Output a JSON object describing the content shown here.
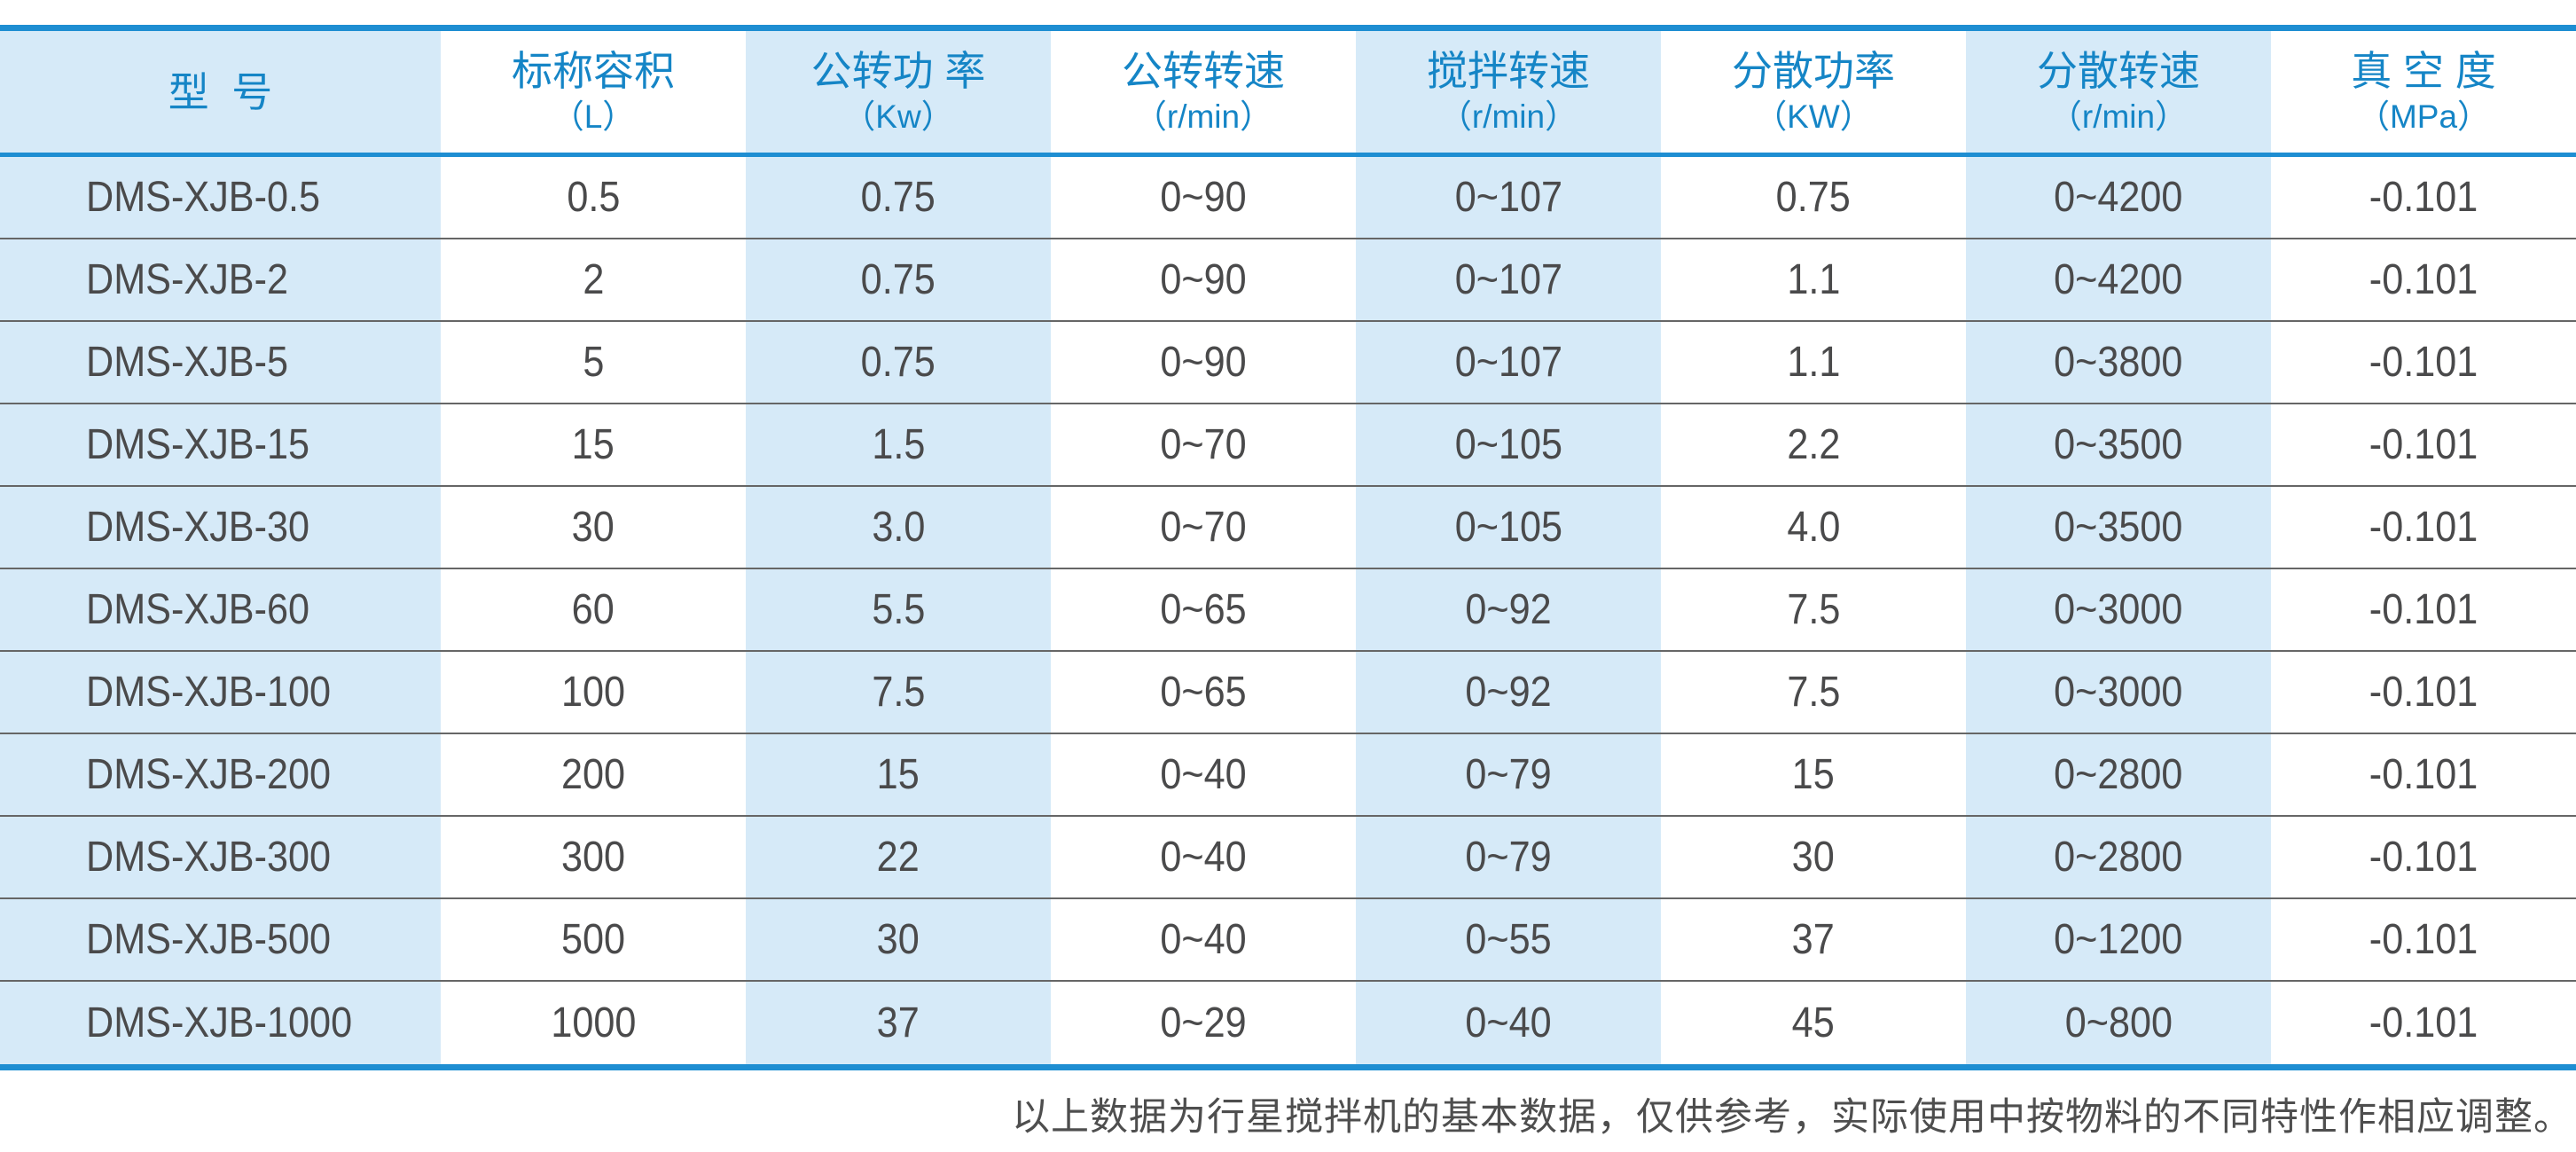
{
  "chart_data": {
    "type": "table",
    "title": "",
    "columns": [
      {
        "title": "型  号",
        "unit": ""
      },
      {
        "title": "标称容积",
        "unit": "（L）"
      },
      {
        "title": "公转功 率",
        "unit": "（Kw）"
      },
      {
        "title": "公转转速",
        "unit": "（r/min）"
      },
      {
        "title": "搅拌转速",
        "unit": "（r/min）"
      },
      {
        "title": "分散功率",
        "unit": "（KW）"
      },
      {
        "title": "分散转速",
        "unit": "（r/min）"
      },
      {
        "title": "真 空 度",
        "unit": "（MPa）"
      }
    ],
    "rows": [
      [
        "DMS-XJB-0.5",
        "0.5",
        "0.75",
        "0~90",
        "0~107",
        "0.75",
        "0~4200",
        "-0.101"
      ],
      [
        "DMS-XJB-2",
        "2",
        "0.75",
        "0~90",
        "0~107",
        "1.1",
        "0~4200",
        "-0.101"
      ],
      [
        "DMS-XJB-5",
        "5",
        "0.75",
        "0~90",
        "0~107",
        "1.1",
        "0~3800",
        "-0.101"
      ],
      [
        "DMS-XJB-15",
        "15",
        "1.5",
        "0~70",
        "0~105",
        "2.2",
        "0~3500",
        "-0.101"
      ],
      [
        "DMS-XJB-30",
        "30",
        "3.0",
        "0~70",
        "0~105",
        "4.0",
        "0~3500",
        "-0.101"
      ],
      [
        "DMS-XJB-60",
        "60",
        "5.5",
        "0~65",
        "0~92",
        "7.5",
        "0~3000",
        "-0.101"
      ],
      [
        "DMS-XJB-100",
        "100",
        "7.5",
        "0~65",
        "0~92",
        "7.5",
        "0~3000",
        "-0.101"
      ],
      [
        "DMS-XJB-200",
        "200",
        "15",
        "0~40",
        "0~79",
        "15",
        "0~2800",
        "-0.101"
      ],
      [
        "DMS-XJB-300",
        "300",
        "22",
        "0~40",
        "0~79",
        "30",
        "0~2800",
        "-0.101"
      ],
      [
        "DMS-XJB-500",
        "500",
        "30",
        "0~40",
        "0~55",
        "37",
        "0~1200",
        "-0.101"
      ],
      [
        "DMS-XJB-1000",
        "1000",
        "37",
        "0~29",
        "0~40",
        "45",
        "0~800",
        "-0.101"
      ]
    ],
    "layout": {
      "banded_columns": "odd columns shaded light blue, even columns white",
      "grid": "horizontal separators only, blue top and bottom borders"
    }
  },
  "footnote": "以上数据为行星搅拌机的基本数据，仅供参考，实际使用中按物料的不同特性作相应调整。",
  "colors": {
    "band_blue": "#d6eaf8",
    "border_blue": "#1e8ed2",
    "header_text_blue": "#1585c6",
    "data_text": "#4a4a4b",
    "separator_gray": "#666666",
    "footnote_gray": "#4e4e4e"
  }
}
